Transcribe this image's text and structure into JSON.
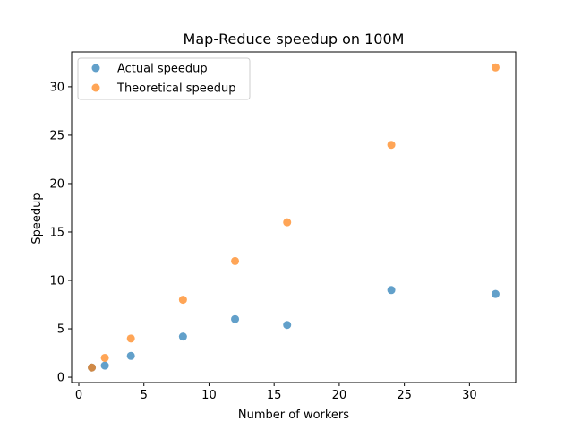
{
  "chart_data": {
    "type": "scatter",
    "title": "Map-Reduce speedup on 100M",
    "xlabel": "Number of workers",
    "ylabel": "Speedup",
    "xlim": [
      -0.55,
      33.55
    ],
    "ylim": [
      -0.55,
      33.6
    ],
    "xticks": [
      0,
      5,
      10,
      15,
      20,
      25,
      30
    ],
    "yticks": [
      0,
      5,
      10,
      15,
      20,
      25,
      30
    ],
    "grid": false,
    "legend_position": "top-left",
    "series": [
      {
        "name": "Actual speedup",
        "color": "#1f77b4",
        "x": [
          1,
          2,
          4,
          8,
          12,
          16,
          24,
          32
        ],
        "y": [
          1.0,
          1.2,
          2.2,
          4.2,
          6.0,
          5.4,
          9.0,
          8.6
        ]
      },
      {
        "name": "Theoretical speedup",
        "color": "#ff7f0e",
        "x": [
          1,
          2,
          4,
          8,
          12,
          16,
          24,
          32
        ],
        "y": [
          1,
          2,
          4,
          8,
          12,
          16,
          24,
          32
        ]
      }
    ]
  }
}
